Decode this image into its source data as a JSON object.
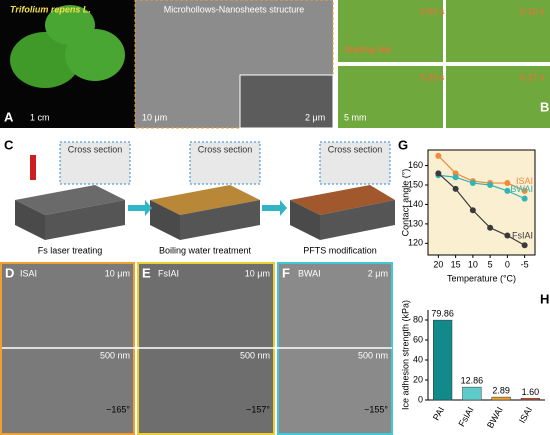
{
  "panels": {
    "A": {
      "label": "A",
      "species": "Trifolium repens L.",
      "structure": "Microhollows-Nanosheets structure",
      "scale_photo": "1 cm",
      "scale_sem": "10 μm",
      "scale_inset": "2 μm"
    },
    "B": {
      "label": "B",
      "times": [
        "0.00 s",
        "0.10 s",
        "0.23 s",
        "0.17 s"
      ],
      "start": "Starting line",
      "scale": "5 mm"
    },
    "C": {
      "label": "C",
      "cross_sections": [
        "Cross section",
        "Cross section",
        "Cross section"
      ],
      "steps": [
        "Fs laser treating",
        "Boiling water treatment",
        "PFTS modification"
      ]
    },
    "D": {
      "label": "D",
      "name": "ISAI",
      "scale_top": "10 μm",
      "scale_bottom": "500 nm",
      "angle": "~165°"
    },
    "E": {
      "label": "E",
      "name": "FsIAI",
      "scale_top": "10 μm",
      "scale_bottom": "500 nm",
      "angle": "~157°"
    },
    "F": {
      "label": "F",
      "name": "BWAI",
      "scale_top": "2 μm",
      "scale_bottom": "500 nm",
      "angle": "~155°"
    },
    "G": {
      "label": "G"
    },
    "H": {
      "label": "H"
    }
  },
  "chart_data": [
    {
      "type": "line",
      "x_label": "Temperature (°C)",
      "y_label": "Contact angle (°)",
      "x": [
        20,
        15,
        10,
        5,
        0,
        -5
      ],
      "xlim": [
        23,
        -8
      ],
      "xticks": [
        20,
        15,
        10,
        5,
        0,
        -5
      ],
      "ylim": [
        114,
        168
      ],
      "yticks": [
        120,
        130,
        140,
        150,
        160
      ],
      "series": [
        {
          "name": "ISAI",
          "color": "#f08a3c",
          "values": [
            165,
            156,
            152,
            151,
            151,
            147
          ]
        },
        {
          "name": "BWAI",
          "color": "#2fb5b5",
          "values": [
            155,
            154,
            151,
            150,
            147,
            143
          ]
        },
        {
          "name": "FsIAI",
          "color": "#3a3a3a",
          "values": [
            156,
            148,
            137,
            128,
            124,
            119
          ]
        }
      ]
    },
    {
      "type": "bar",
      "y_label": "Ice adhesion strength (kPa)",
      "categories": [
        "PAI",
        "FsIAI",
        "BWAI",
        "ISAI"
      ],
      "values": [
        79.86,
        12.86,
        2.89,
        1.6
      ],
      "value_labels": [
        "79.86",
        "12.86",
        "2.89",
        "1.60"
      ],
      "colors": [
        "#138a8a",
        "#5fcaca",
        "#e8a030",
        "#d04a20"
      ],
      "ylim": [
        0,
        90
      ],
      "yticks": [
        0,
        20,
        40,
        60,
        80
      ]
    }
  ]
}
